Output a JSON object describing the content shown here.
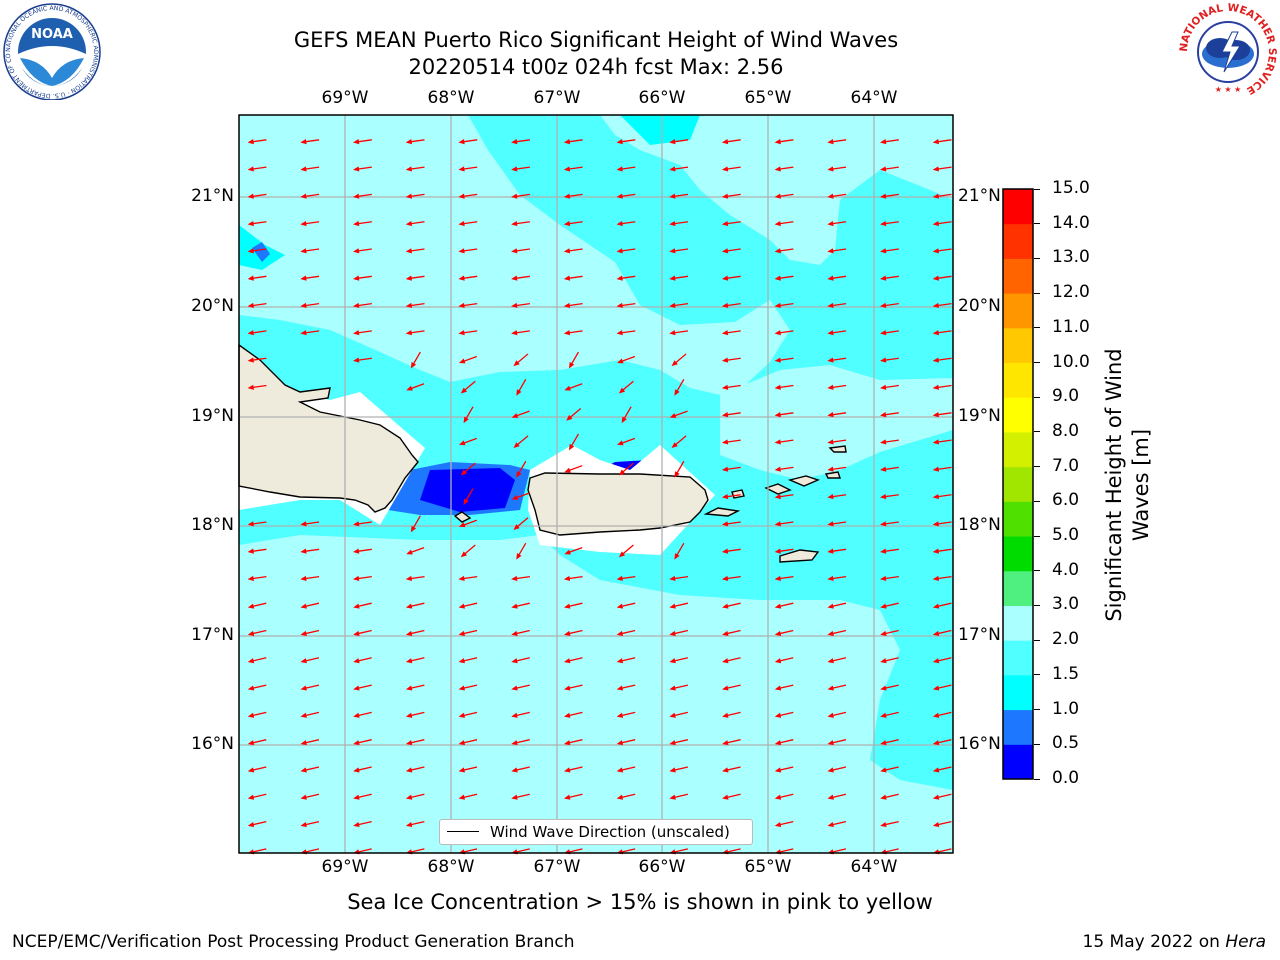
{
  "header": {
    "title_line1": "GEFS MEAN Puerto Rico Significant Height of Wind Waves",
    "title_line2": "20220514 t00z 024h fcst   Max: 2.56"
  },
  "logos": {
    "noaa": {
      "text": "NOAA",
      "ring_text": "NATIONAL OCEANIC AND ATMOSPHERIC ADMINISTRATION · U.S. DEPARTMENT OF COMMERCE"
    },
    "nws": {
      "ring_text": "NATIONAL WEATHER SERVICE"
    }
  },
  "map": {
    "lon_labels": [
      "69°W",
      "68°W",
      "67°W",
      "66°W",
      "65°W",
      "64°W"
    ],
    "lat_labels": [
      "21°N",
      "20°N",
      "19°N",
      "18°N",
      "17°N",
      "16°N"
    ],
    "legend_label": "Wind Wave Direction (unscaled)",
    "colors": {
      "land": "#efebdc",
      "coast": "#000000",
      "arrows": "#ff0000",
      "grid": "#b0b0b0"
    }
  },
  "colorbar": {
    "label": "Significant Height of Wind Waves [m]",
    "ticks": [
      "0.0",
      "0.5",
      "1.0",
      "1.5",
      "2.0",
      "3.0",
      "4.0",
      "5.0",
      "6.0",
      "7.0",
      "8.0",
      "9.0",
      "10.0",
      "11.0",
      "12.0",
      "13.0",
      "14.0",
      "15.0"
    ],
    "colors": [
      "#0000ff",
      "#1e78ff",
      "#00ffff",
      "#50ffff",
      "#aaffff",
      "#50f080",
      "#00dc00",
      "#50e000",
      "#a0e600",
      "#d2f000",
      "#ffff00",
      "#ffe600",
      "#ffc800",
      "#ff9600",
      "#ff6400",
      "#ff3200",
      "#ff0000"
    ]
  },
  "note": "Sea Ice Concentration > 15% is shown in pink to yellow",
  "footer": {
    "left": "NCEP/EMC/Verification Post Processing Product Generation Branch",
    "right_prefix": "15 May 2022 on ",
    "right_host": "Hera"
  }
}
